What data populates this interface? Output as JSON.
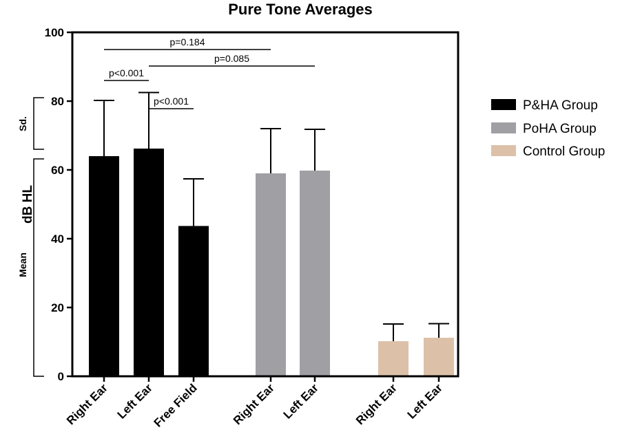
{
  "chart_data": {
    "type": "bar",
    "title": "Pure Tone Averages",
    "ylabel": "dB HL",
    "ylim": [
      0,
      100
    ],
    "yticks": [
      0,
      20,
      40,
      60,
      80,
      100
    ],
    "grid": false,
    "legend_position": "right",
    "side_labels": {
      "sd": "Sd.",
      "mean": "Mean"
    },
    "series": [
      {
        "name": "P&HA Group",
        "color": "#000000",
        "categories": [
          "Right Ear",
          "Left Ear",
          "Free Field"
        ],
        "values": [
          64,
          66.2,
          43.7
        ],
        "sd": [
          16.2,
          16.3,
          13.7
        ]
      },
      {
        "name": "PoHA Group",
        "color": "#a0a0a4",
        "categories": [
          "Right Ear",
          "Left Ear"
        ],
        "values": [
          59,
          59.8
        ],
        "sd": [
          13,
          12
        ]
      },
      {
        "name": "Control Group",
        "color": "#dcc1a8",
        "categories": [
          "Right Ear",
          "Left Ear"
        ],
        "values": [
          10.2,
          11.2
        ],
        "sd": [
          5,
          4.1
        ]
      }
    ],
    "annotations": [
      {
        "text": "p=0.184",
        "from_bar": 0,
        "to_bar": 3,
        "y": 95
      },
      {
        "text": "p=0.085",
        "from_bar": 1,
        "to_bar": 4,
        "y": 90.2
      },
      {
        "text": "p<0.001",
        "from_bar": 0,
        "to_bar": 1,
        "y": 86
      },
      {
        "text": "p<0.001",
        "from_bar": 1,
        "to_bar": 2,
        "y": 77.8
      }
    ]
  }
}
